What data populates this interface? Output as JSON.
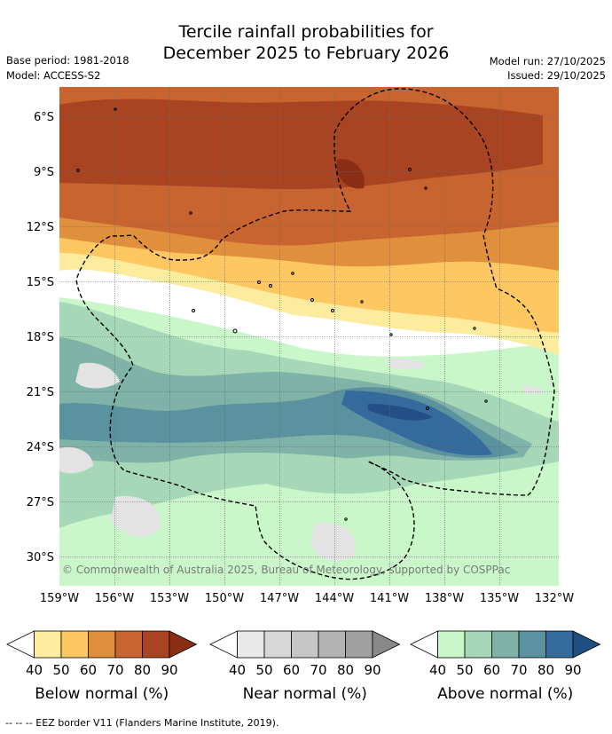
{
  "header": {
    "title_line1": "Tercile rainfall probabilities for",
    "title_line2": "December 2025 to February 2026",
    "base_period": "Base period: 1981-2018",
    "model": "Model: ACCESS-S2",
    "model_run": "Model run: 27/10/2025",
    "issued": "Issued: 29/10/2025"
  },
  "map": {
    "lat_labels": [
      "6°S",
      "9°S",
      "12°S",
      "15°S",
      "18°S",
      "21°S",
      "24°S",
      "27°S",
      "30°S"
    ],
    "lon_labels": [
      "159°W",
      "156°W",
      "153°W",
      "150°W",
      "147°W",
      "144°W",
      "141°W",
      "138°W",
      "135°W",
      "132°W"
    ],
    "lat_range_deg_s": [
      4.5,
      31.5
    ],
    "lon_range_deg_w": [
      159,
      132
    ],
    "copyright": "© Commonwealth of Australia 2025, Bureau of Meteorology, supported by COSPPac"
  },
  "legends": [
    {
      "label": "Below normal (%)",
      "ticks": [
        "40",
        "50",
        "60",
        "70",
        "80",
        "90"
      ],
      "colors": [
        "#ffffff",
        "#fdeb9e",
        "#fdc862",
        "#e08f3c",
        "#c86430",
        "#a94422",
        "#8a2e16"
      ]
    },
    {
      "label": "Near normal (%)",
      "ticks": [
        "40",
        "50",
        "60",
        "70",
        "80",
        "90"
      ],
      "colors": [
        "#ffffff",
        "#e8e8e8",
        "#d8d8d8",
        "#c6c6c6",
        "#b3b3b3",
        "#9f9f9f",
        "#888888"
      ]
    },
    {
      "label": "Above normal (%)",
      "ticks": [
        "40",
        "50",
        "60",
        "70",
        "80",
        "90"
      ],
      "colors": [
        "#ffffff",
        "#c9f7c9",
        "#a6d8b8",
        "#7fb3a8",
        "#5a92a0",
        "#356a9c",
        "#1f4f80"
      ]
    }
  ],
  "footnote": "--  --  -- EEZ border V11 (Flanders Marine Institute, 2019)."
}
